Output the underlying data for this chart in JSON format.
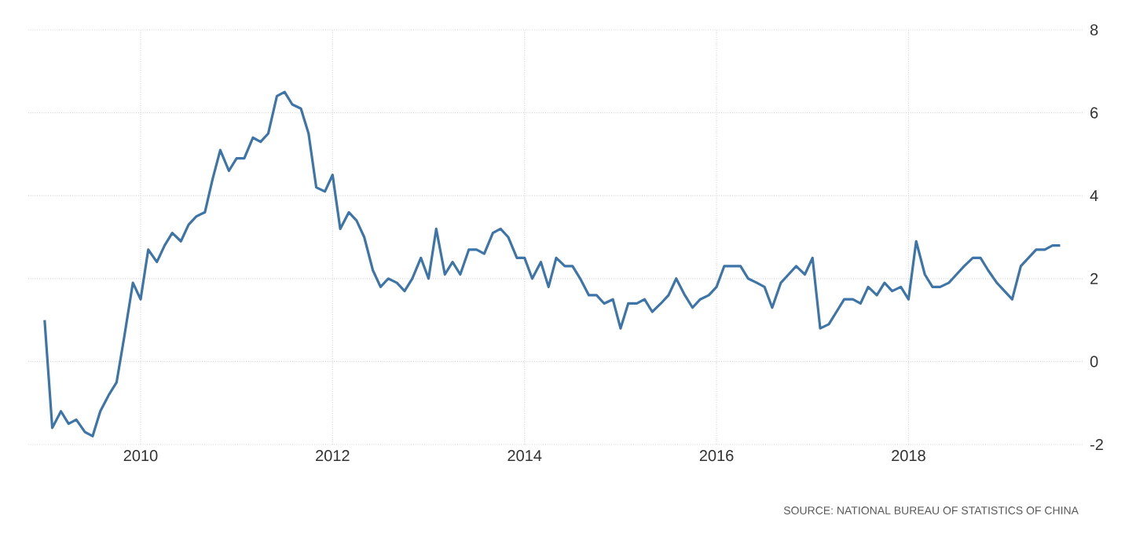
{
  "chart_data": {
    "type": "line",
    "x": [
      "2009-01",
      "2009-02",
      "2009-03",
      "2009-04",
      "2009-05",
      "2009-06",
      "2009-07",
      "2009-08",
      "2009-09",
      "2009-10",
      "2009-11",
      "2009-12",
      "2010-01",
      "2010-02",
      "2010-03",
      "2010-04",
      "2010-05",
      "2010-06",
      "2010-07",
      "2010-08",
      "2010-09",
      "2010-10",
      "2010-11",
      "2010-12",
      "2011-01",
      "2011-02",
      "2011-03",
      "2011-04",
      "2011-05",
      "2011-06",
      "2011-07",
      "2011-08",
      "2011-09",
      "2011-10",
      "2011-11",
      "2011-12",
      "2012-01",
      "2012-02",
      "2012-03",
      "2012-04",
      "2012-05",
      "2012-06",
      "2012-07",
      "2012-08",
      "2012-09",
      "2012-10",
      "2012-11",
      "2012-12",
      "2013-01",
      "2013-02",
      "2013-03",
      "2013-04",
      "2013-05",
      "2013-06",
      "2013-07",
      "2013-08",
      "2013-09",
      "2013-10",
      "2013-11",
      "2013-12",
      "2014-01",
      "2014-02",
      "2014-03",
      "2014-04",
      "2014-05",
      "2014-06",
      "2014-07",
      "2014-08",
      "2014-09",
      "2014-10",
      "2014-11",
      "2014-12",
      "2015-01",
      "2015-02",
      "2015-03",
      "2015-04",
      "2015-05",
      "2015-06",
      "2015-07",
      "2015-08",
      "2015-09",
      "2015-10",
      "2015-11",
      "2015-12",
      "2016-01",
      "2016-02",
      "2016-03",
      "2016-04",
      "2016-05",
      "2016-06",
      "2016-07",
      "2016-08",
      "2016-09",
      "2016-10",
      "2016-11",
      "2016-12",
      "2017-01",
      "2017-02",
      "2017-03",
      "2017-04",
      "2017-05",
      "2017-06",
      "2017-07",
      "2017-08",
      "2017-09",
      "2017-10",
      "2017-11",
      "2017-12",
      "2018-01",
      "2018-02",
      "2018-03",
      "2018-04",
      "2018-05",
      "2018-06",
      "2018-07",
      "2018-08",
      "2018-09",
      "2018-10",
      "2018-11",
      "2018-12",
      "2019-01",
      "2019-02",
      "2019-03",
      "2019-04",
      "2019-05",
      "2019-06",
      "2019-07",
      "2019-08"
    ],
    "series": [
      {
        "color": "#3e75a8",
        "values": [
          1.0,
          -1.6,
          -1.2,
          -1.5,
          -1.4,
          -1.7,
          -1.8,
          -1.2,
          -0.8,
          -0.5,
          0.6,
          1.9,
          1.5,
          2.7,
          2.4,
          2.8,
          3.1,
          2.9,
          3.3,
          3.5,
          3.6,
          4.4,
          5.1,
          4.6,
          4.9,
          4.9,
          5.4,
          5.3,
          5.5,
          6.4,
          6.5,
          6.2,
          6.1,
          5.5,
          4.2,
          4.1,
          4.5,
          3.2,
          3.6,
          3.4,
          3.0,
          2.2,
          1.8,
          2.0,
          1.9,
          1.7,
          2.0,
          2.5,
          2.0,
          3.2,
          2.1,
          2.4,
          2.1,
          2.7,
          2.7,
          2.6,
          3.1,
          3.2,
          3.0,
          2.5,
          2.5,
          2.0,
          2.4,
          1.8,
          2.5,
          2.3,
          2.3,
          2.0,
          1.6,
          1.6,
          1.4,
          1.5,
          0.8,
          1.4,
          1.4,
          1.5,
          1.2,
          1.4,
          1.6,
          2.0,
          1.6,
          1.3,
          1.5,
          1.6,
          1.8,
          2.3,
          2.3,
          2.3,
          2.0,
          1.9,
          1.8,
          1.3,
          1.9,
          2.1,
          2.3,
          2.1,
          2.5,
          0.8,
          0.9,
          1.2,
          1.5,
          1.5,
          1.4,
          1.8,
          1.6,
          1.9,
          1.7,
          1.8,
          1.5,
          2.9,
          2.1,
          1.8,
          1.8,
          1.9,
          2.1,
          2.3,
          2.5,
          2.5,
          2.2,
          1.9,
          1.7,
          1.5,
          2.3,
          2.5,
          2.7,
          2.7,
          2.8,
          2.8
        ]
      }
    ],
    "xlim": [
      "2008-11",
      "2019-11"
    ],
    "xticks": [
      "2010",
      "2012",
      "2014",
      "2016",
      "2018"
    ],
    "ylim": [
      -2,
      8
    ],
    "yticks": [
      -2,
      0,
      2,
      4,
      6,
      8
    ],
    "grid": true,
    "annotations": [
      "SOURCE: NATIONAL BUREAU OF STATISTICS OF CHINA"
    ]
  }
}
